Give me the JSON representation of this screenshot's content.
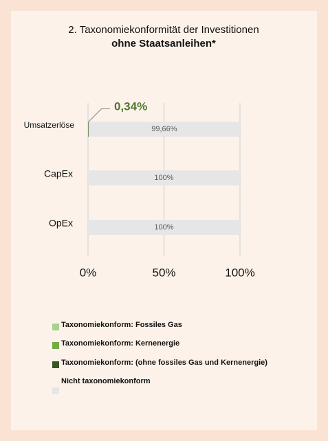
{
  "chart_data": {
    "type": "stacked-bar-horizontal",
    "title": "2. Taxonomiekonformität der Investitionen",
    "subtitle": "ohne Staatsanleihen*",
    "categories": [
      "Umsatzerlöse",
      "CapEx",
      "OpEx"
    ],
    "series": [
      {
        "name": "Taxonomiekonform: Fossiles Gas",
        "color": "#a9d18e",
        "values": [
          0,
          0,
          0
        ]
      },
      {
        "name": "Taxonomiekonform: Kernenergie",
        "color": "#70ad47",
        "values": [
          0,
          0,
          0
        ]
      },
      {
        "name": "Taxonomiekonform: (ohne fossiles Gas und Kernenergie)",
        "color": "#375623",
        "values": [
          0.34,
          0,
          0
        ],
        "value_labels": [
          "0,34%",
          null,
          null
        ]
      },
      {
        "name": "Nicht taxonomiekonform",
        "color": "#e7e6e6",
        "values": [
          99.66,
          100,
          100
        ],
        "value_labels": [
          "99,66%",
          "100%",
          "100%"
        ]
      }
    ],
    "xlim": [
      0,
      100
    ],
    "xticks": [
      {
        "value": 0,
        "label": "0%"
      },
      {
        "value": 50,
        "label": "50%"
      },
      {
        "value": 100,
        "label": "100%"
      }
    ],
    "grid": true
  }
}
